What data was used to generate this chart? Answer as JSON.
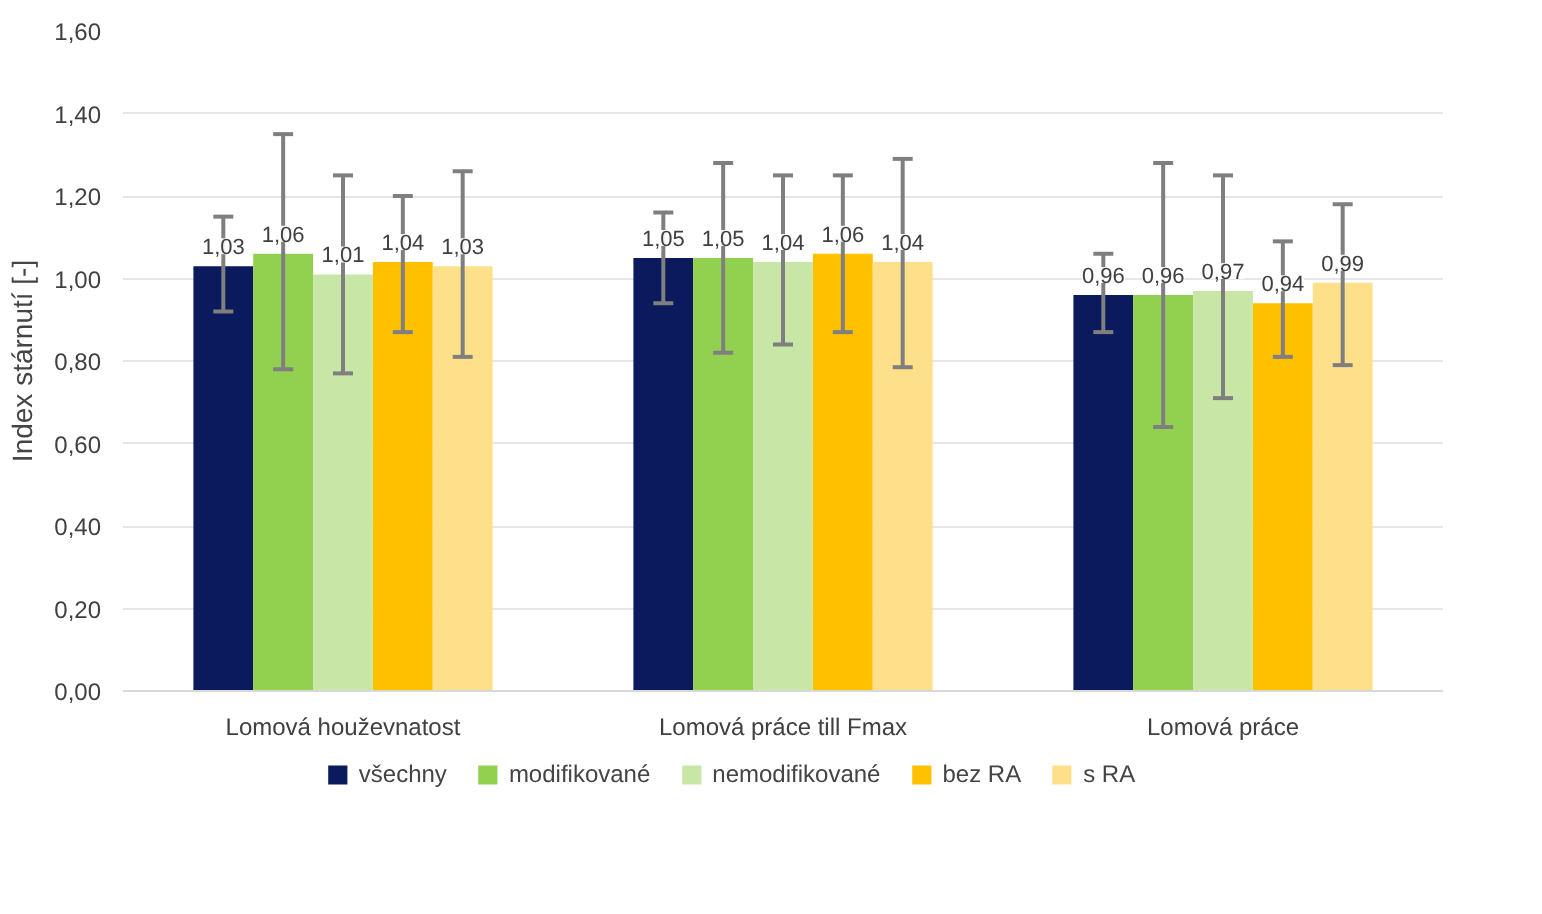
{
  "chart_data": {
    "type": "bar",
    "ylabel": "Index stárnutí [-]",
    "categories": [
      "Lomová houževnatost",
      "Lomová práce till Fmax",
      "Lomová práce"
    ],
    "series": [
      {
        "name": "všechny",
        "color": "#0a1a5c",
        "values": [
          1.03,
          1.05,
          0.96
        ],
        "value_labels": [
          "1,03",
          "1,05",
          "0,96"
        ],
        "errors": [
          [
            0.92,
            1.15
          ],
          [
            0.94,
            1.16
          ],
          [
            0.87,
            1.06
          ]
        ]
      },
      {
        "name": "modifikované",
        "color": "#92d050",
        "values": [
          1.06,
          1.05,
          0.96
        ],
        "value_labels": [
          "1,06",
          "1,05",
          "0,96"
        ],
        "errors": [
          [
            0.78,
            1.35
          ],
          [
            0.82,
            1.28
          ],
          [
            0.64,
            1.28
          ]
        ]
      },
      {
        "name": "nemodifikované",
        "color": "#c8e7a7",
        "values": [
          1.01,
          1.04,
          0.97
        ],
        "value_labels": [
          "1,01",
          "1,04",
          "0,97"
        ],
        "errors": [
          [
            0.77,
            1.25
          ],
          [
            0.84,
            1.25
          ],
          [
            0.71,
            1.25
          ]
        ]
      },
      {
        "name": "bez RA",
        "color": "#ffc000",
        "values": [
          1.04,
          1.06,
          0.94
        ],
        "value_labels": [
          "1,04",
          "1,06",
          "0,94"
        ],
        "errors": [
          [
            0.87,
            1.2
          ],
          [
            0.87,
            1.25
          ],
          [
            0.81,
            1.09
          ]
        ]
      },
      {
        "name": "s RA",
        "color": "#ffe08a",
        "values": [
          1.03,
          1.04,
          0.99
        ],
        "value_labels": [
          "1,03",
          "1,04",
          "0,99"
        ],
        "errors": [
          [
            0.81,
            1.26
          ],
          [
            0.785,
            1.29
          ],
          [
            0.79,
            1.18
          ]
        ]
      }
    ],
    "ylim": [
      0,
      1.6
    ],
    "yticks": [
      {
        "value": 0,
        "label": "0,00"
      },
      {
        "value": 0.2,
        "label": "0,20"
      },
      {
        "value": 0.4,
        "label": "0,40"
      },
      {
        "value": 0.6,
        "label": "0,60"
      },
      {
        "value": 0.8,
        "label": "0,80"
      },
      {
        "value": 1.0,
        "label": "1,00"
      },
      {
        "value": 1.2,
        "label": "1,20"
      },
      {
        "value": 1.4,
        "label": "1,40"
      },
      {
        "value": 1.6,
        "label": "1,60"
      }
    ],
    "grid": "y",
    "legend": "bottom"
  }
}
